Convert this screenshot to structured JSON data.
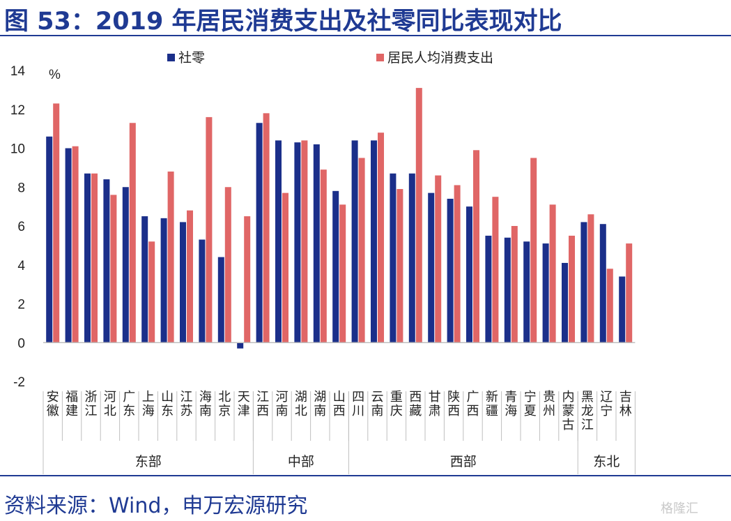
{
  "header": {
    "title": "图 53：2019 年居民消费支出及社零同比表现对比"
  },
  "footer": {
    "source": "资料来源：Wind，申万宏源研究",
    "watermark": "格隆汇"
  },
  "colors": {
    "title": "#1f3a93",
    "series1": "#1b2f8a",
    "series2": "#e06666"
  },
  "chart_data": {
    "type": "bar",
    "ylabel": "%",
    "ylim": [
      -2,
      14
    ],
    "yticks": [
      -2,
      0,
      2,
      4,
      6,
      8,
      10,
      12,
      14
    ],
    "legend_position": "top",
    "grid": false,
    "categories": [
      "安徽",
      "福建",
      "浙江",
      "河北",
      "广东",
      "上海",
      "山东",
      "江苏",
      "海南",
      "北京",
      "天津",
      "江西",
      "河南",
      "湖北",
      "湖南",
      "山西",
      "四川",
      "云南",
      "重庆",
      "西藏",
      "甘肃",
      "陕西",
      "广西",
      "新疆",
      "青海",
      "宁夏",
      "贵州",
      "内蒙古",
      "黑龙江",
      "辽宁",
      "吉林"
    ],
    "series": [
      {
        "name": "社零",
        "values": [
          10.6,
          10.0,
          8.7,
          8.4,
          8.0,
          6.5,
          6.4,
          6.2,
          5.3,
          4.4,
          -0.3,
          11.3,
          10.4,
          10.3,
          10.2,
          7.8,
          10.4,
          10.4,
          8.7,
          8.7,
          7.7,
          7.4,
          7.0,
          5.5,
          5.4,
          5.2,
          5.1,
          4.1,
          6.2,
          6.1,
          3.4
        ]
      },
      {
        "name": "居民人均消费支出",
        "values": [
          12.3,
          10.1,
          8.7,
          7.6,
          11.3,
          5.2,
          8.8,
          6.8,
          11.6,
          8.0,
          6.5,
          11.8,
          7.7,
          10.4,
          8.9,
          7.1,
          9.5,
          10.8,
          7.9,
          13.1,
          8.6,
          8.1,
          9.9,
          7.5,
          6.0,
          9.5,
          7.1,
          5.5,
          6.6,
          3.8,
          5.1
        ]
      }
    ],
    "groups": [
      {
        "label": "东部",
        "start": 0,
        "end": 10
      },
      {
        "label": "中部",
        "start": 11,
        "end": 15
      },
      {
        "label": "西部",
        "start": 16,
        "end": 27
      },
      {
        "label": "东北",
        "start": 28,
        "end": 30
      }
    ]
  }
}
